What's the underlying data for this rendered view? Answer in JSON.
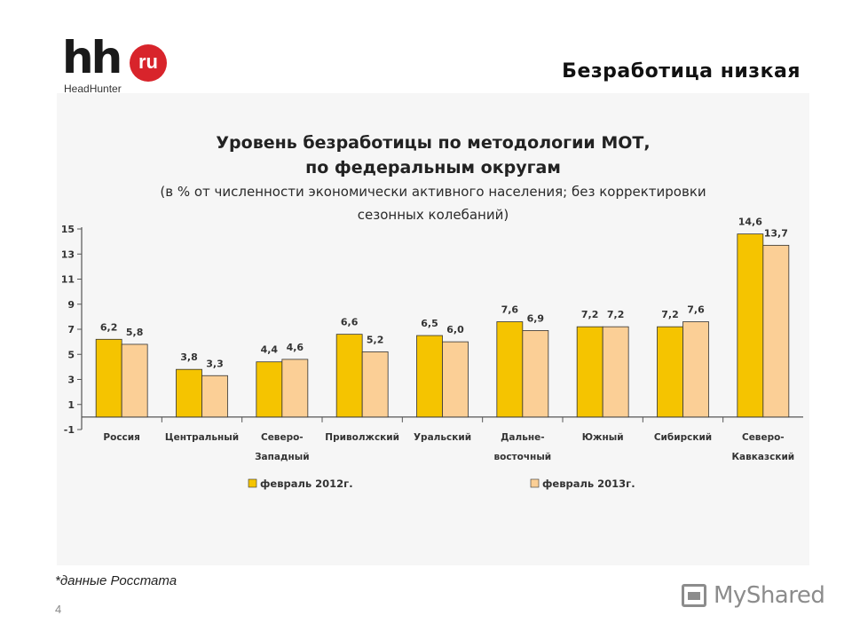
{
  "header": {
    "logo_main": "hh",
    "logo_badge": "ru",
    "logo_sub": "HeadHunter",
    "slide_title": "Безработица низкая"
  },
  "chart_data": {
    "type": "bar",
    "title": "Уровень безработицы по методологии МОТ,",
    "title_line2": "по федеральным округам",
    "subtitle": "(в % от численности экономически активного населения; без корректировки",
    "subtitle_line2": "сезонных колебаний)",
    "categories": [
      [
        "Россия"
      ],
      [
        "Центральный"
      ],
      [
        "Северо-",
        "Западный"
      ],
      [
        "Приволжский"
      ],
      [
        "Уральский"
      ],
      [
        "Дальне-",
        "восточный"
      ],
      [
        "Южный"
      ],
      [
        "Сибирский"
      ],
      [
        "Северо-",
        "Кавказский"
      ]
    ],
    "series": [
      {
        "name": "февраль 2012г.",
        "color": "#f5c400",
        "values": [
          6.2,
          3.8,
          4.4,
          6.6,
          6.5,
          7.6,
          7.2,
          7.2,
          14.6
        ],
        "labels": [
          "6,2",
          "3,8",
          "4,4",
          "6,6",
          "6,5",
          "7,6",
          "7,2",
          "7,2",
          "14,6"
        ]
      },
      {
        "name": "февраль 2013г.",
        "color": "#fbcf96",
        "values": [
          5.8,
          3.3,
          4.6,
          5.2,
          6.0,
          6.9,
          7.2,
          7.6,
          13.7
        ],
        "labels": [
          "5,8",
          "3,3",
          "4,6",
          "5,2",
          "6,0",
          "6,9",
          "7,2",
          "7,6",
          "13,7"
        ]
      }
    ],
    "yticks": [
      "15",
      "13",
      "11",
      "9",
      "7",
      "5",
      "3",
      "1",
      "-1"
    ],
    "ylim": [
      -1,
      15
    ],
    "legend": "bottom",
    "grid": false
  },
  "footer": {
    "footnote": "*данные Росстата",
    "page_number": "4",
    "watermark": "MyShared"
  }
}
